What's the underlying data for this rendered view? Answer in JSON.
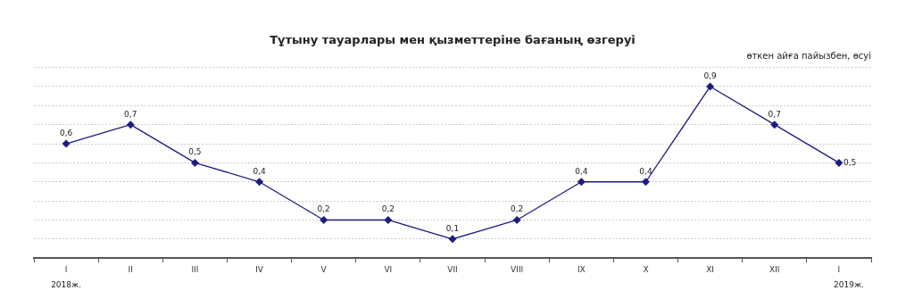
{
  "chart_data": {
    "type": "line",
    "title": "Тұтыну тауарлары мен қызметтеріне бағаның өзгеруі",
    "subtitle": "өткен айға пайызбен, өсуі",
    "categories": [
      "I",
      "II",
      "III",
      "IV",
      "V",
      "VI",
      "VII",
      "VIII",
      "IX",
      "X",
      "XI",
      "XII",
      "I"
    ],
    "series": [
      {
        "color": "#1c1c80",
        "values": [
          0.6,
          0.7,
          0.5,
          0.4,
          0.2,
          0.2,
          0.1,
          0.2,
          0.4,
          0.4,
          0.9,
          0.7,
          0.5
        ],
        "value_labels": [
          "0,6",
          "0,7",
          "0,5",
          "0,4",
          "0,2",
          "0,2",
          "0,1",
          "0,2",
          "0,4",
          "0,4",
          "0,9",
          "0,7",
          "0,5"
        ]
      }
    ],
    "ylim": [
      0,
      1
    ],
    "yticks": [
      {
        "value": 0,
        "label": null
      },
      {
        "value": 0.1,
        "label": null
      },
      {
        "value": 0.2,
        "label": null
      },
      {
        "value": 0.3,
        "label": null
      },
      {
        "value": 0.4,
        "label": null
      },
      {
        "value": 0.5,
        "label": null
      },
      {
        "value": 0.6,
        "label": null
      },
      {
        "value": 0.7,
        "label": null
      },
      {
        "value": 0.8,
        "label": null
      },
      {
        "value": 0.9,
        "label": null
      },
      {
        "value": 1,
        "label": null
      }
    ],
    "tick_labels": "x",
    "grid": "y",
    "marker": "diamond",
    "line_style": "solid",
    "legend": false,
    "annotations": [
      "2018ж.",
      "2019ж."
    ]
  }
}
